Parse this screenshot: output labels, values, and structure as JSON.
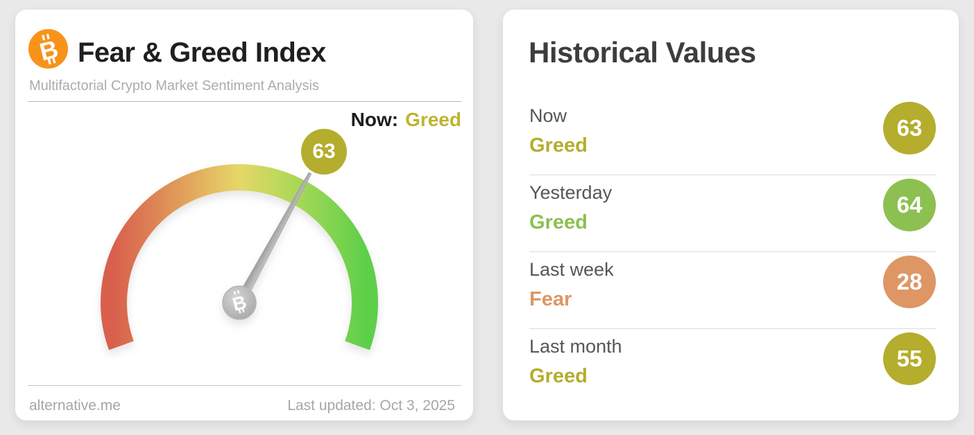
{
  "page": {
    "background": "#e9e9e9"
  },
  "brand": {
    "bitcoin_icon_color": "#f7931a",
    "bitcoin_letter": "B"
  },
  "gauge_card": {
    "title": "Fear & Greed Index",
    "subtitle": "Multifactorial Crypto Market Sentiment Analysis",
    "now_prefix": "Now:",
    "now_classification": "Greed",
    "now_classification_color": "#bdb42e",
    "value_badge": "63",
    "value_badge_color": "#b4ad2d",
    "footer": {
      "source": "alternative.me",
      "last_updated": "Last updated: Oct 3, 2025"
    }
  },
  "historical_card": {
    "title": "Historical Values",
    "rows": [
      {
        "label": "Now",
        "classification": "Greed",
        "value": "63",
        "color": "#b4ad2d"
      },
      {
        "label": "Yesterday",
        "classification": "Greed",
        "value": "64",
        "color": "#8cc050"
      },
      {
        "label": "Last week",
        "classification": "Fear",
        "value": "28",
        "color": "#de9664"
      },
      {
        "label": "Last month",
        "classification": "Greed",
        "value": "55",
        "color": "#b4ad2d"
      }
    ]
  },
  "chart_data": {
    "type": "gauge",
    "title": "Fear & Greed Index",
    "value": 63,
    "classification": "Greed",
    "min": 0,
    "max": 100,
    "sweep_degrees": 220,
    "scale_colors": [
      "#d9604d",
      "#dd8155",
      "#e3ad5e",
      "#e6d768",
      "#bcd95b",
      "#8ad551",
      "#5ecf49"
    ],
    "needle_color": "#ababab",
    "historical": [
      {
        "label": "Now",
        "classification": "Greed",
        "value": 63
      },
      {
        "label": "Yesterday",
        "classification": "Greed",
        "value": 64
      },
      {
        "label": "Last week",
        "classification": "Fear",
        "value": 28
      },
      {
        "label": "Last month",
        "classification": "Greed",
        "value": 55
      }
    ]
  }
}
